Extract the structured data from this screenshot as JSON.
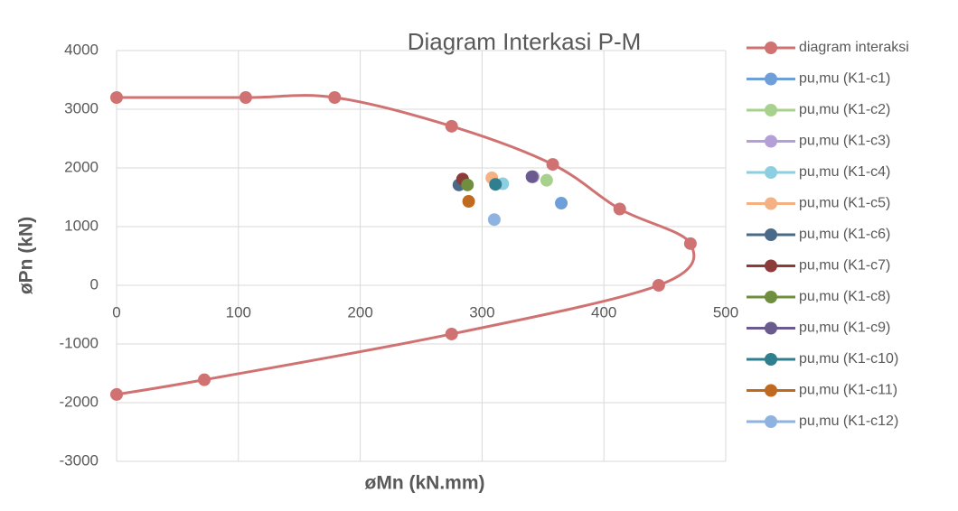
{
  "chart_data": {
    "type": "scatter",
    "title": "Diagram Interkasi P-M",
    "x_label": "øMn (kN.mm)",
    "y_label": "øPn (kN)",
    "xlim": [
      0,
      500
    ],
    "xticks": [
      0,
      100,
      200,
      300,
      400,
      500
    ],
    "ylim": [
      -3000,
      4000
    ],
    "yticks": [
      -3000,
      -2000,
      -1000,
      0,
      1000,
      2000,
      3000,
      4000
    ],
    "grid": true,
    "legend": "right",
    "series": [
      {
        "name": "diagram interaksi",
        "color": "#d07272",
        "line": true,
        "smooth": true,
        "x": [
          0,
          106,
          179,
          275,
          358,
          413,
          471,
          445,
          275,
          72,
          0
        ],
        "values": [
          3200,
          3200,
          3200,
          2710,
          2060,
          1300,
          710,
          0,
          -830,
          -1610,
          -1860
        ]
      },
      {
        "name": "pu,mu (K1-c1)",
        "color": "#6f9fd8",
        "x": [
          365
        ],
        "values": [
          1400
        ]
      },
      {
        "name": "pu,mu (K1-c2)",
        "color": "#a9d18e",
        "x": [
          353
        ],
        "values": [
          1790
        ]
      },
      {
        "name": "pu,mu (K1-c3)",
        "color": "#b4a0d6",
        "x": [
          342
        ],
        "values": [
          1850
        ]
      },
      {
        "name": "pu,mu (K1-c4)",
        "color": "#8ccfe0",
        "x": [
          317
        ],
        "values": [
          1730
        ]
      },
      {
        "name": "pu,mu (K1-c5)",
        "color": "#f4b183",
        "x": [
          308
        ],
        "values": [
          1830
        ]
      },
      {
        "name": "pu,mu (K1-c6)",
        "color": "#4a6a8a",
        "x": [
          281
        ],
        "values": [
          1710
        ]
      },
      {
        "name": "pu,mu (K1-c7)",
        "color": "#8c3b3b",
        "x": [
          284
        ],
        "values": [
          1810
        ]
      },
      {
        "name": "pu,mu (K1-c8)",
        "color": "#6f8f3f",
        "x": [
          288
        ],
        "values": [
          1710
        ]
      },
      {
        "name": "pu,mu (K1-c9)",
        "color": "#6a5a8e",
        "x": [
          341
        ],
        "values": [
          1850
        ]
      },
      {
        "name": "pu,mu (K1-c10)",
        "color": "#2f7f8f",
        "x": [
          311
        ],
        "values": [
          1720
        ]
      },
      {
        "name": "pu,mu (K1-c11)",
        "color": "#c06a1f",
        "x": [
          289
        ],
        "values": [
          1430
        ]
      },
      {
        "name": "pu,mu (K1-c12)",
        "color": "#8fb3e0",
        "x": [
          310
        ],
        "values": [
          1120
        ]
      }
    ]
  }
}
